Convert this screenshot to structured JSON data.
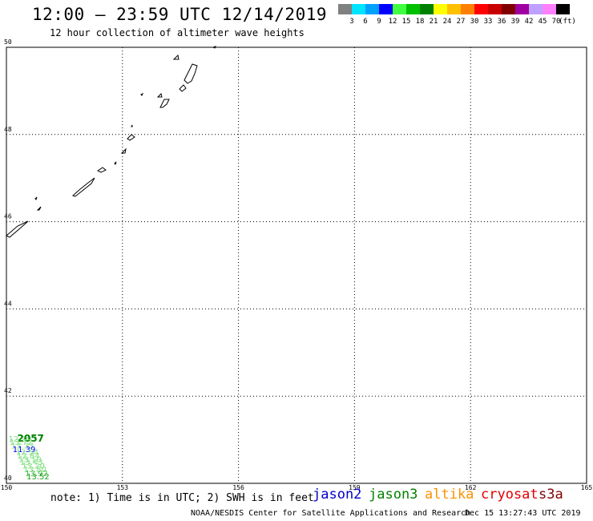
{
  "header": {
    "title": "12:00 – 23:59 UTC 12/14/2019",
    "subtitle": "12 hour collection of altimeter wave heights"
  },
  "color_scale": {
    "swatches": [
      "#808080",
      "#00e5ff",
      "#00a0ff",
      "#0000ff",
      "#40ff40",
      "#00c000",
      "#008000",
      "#ffff00",
      "#ffc000",
      "#ff8000",
      "#ff0000",
      "#c80000",
      "#800000",
      "#a000a0",
      "#c0a0ff",
      "#ff80ff",
      "#000000"
    ],
    "labels": [
      "3",
      "6",
      "9",
      "12",
      "15",
      "18",
      "21",
      "24",
      "27",
      "30",
      "33",
      "36",
      "39",
      "42",
      "45",
      "70"
    ],
    "unit": "(ft)"
  },
  "map": {
    "lon_ticks": [
      "150",
      "153",
      "156",
      "159",
      "162",
      "165"
    ],
    "lat_ticks": [
      "40",
      "42",
      "44",
      "46",
      "48",
      "50"
    ],
    "lon_range": [
      150,
      165
    ],
    "lat_range": [
      40,
      50
    ]
  },
  "swh_labels": [
    {
      "text": "12.30",
      "lon": 150.05,
      "lat": 40.96,
      "color": "#80e080"
    },
    {
      "text": "2057",
      "lon": 150.28,
      "lat": 40.96,
      "color": "#008000",
      "bold": true
    },
    {
      "text": "13.72",
      "lon": 150.08,
      "lat": 40.88,
      "color": "#80e080"
    },
    {
      "text": "13.33",
      "lon": 150.12,
      "lat": 40.8,
      "color": "#80e080"
    },
    {
      "text": "11.39",
      "lon": 150.16,
      "lat": 40.72,
      "color": "#0000ff"
    },
    {
      "text": "12.54",
      "lon": 150.24,
      "lat": 40.65,
      "color": "#80e080"
    },
    {
      "text": "12.84",
      "lon": 150.27,
      "lat": 40.57,
      "color": "#80e080"
    },
    {
      "text": "13.10",
      "lon": 150.31,
      "lat": 40.49,
      "color": "#80e080"
    },
    {
      "text": "13.43",
      "lon": 150.35,
      "lat": 40.42,
      "color": "#80e080"
    },
    {
      "text": "13.20",
      "lon": 150.4,
      "lat": 40.34,
      "color": "#80e080"
    },
    {
      "text": "13.80",
      "lon": 150.44,
      "lat": 40.26,
      "color": "#80e080"
    },
    {
      "text": "13.92",
      "lon": 150.48,
      "lat": 40.17,
      "color": "#40c040"
    },
    {
      "text": "13.52",
      "lon": 150.52,
      "lat": 40.09,
      "color": "#20a020"
    }
  ],
  "legend": {
    "note": "note: 1) Time is in UTC; 2) SWH is in feet",
    "satellites": [
      {
        "name": "jason2",
        "color": "#0000d0"
      },
      {
        "name": "jason3",
        "color": "#008000"
      },
      {
        "name": "altika",
        "color": "#ff9000"
      },
      {
        "name": "cryosat",
        "color": "#e00000"
      },
      {
        "name": "s3a",
        "color": "#800000"
      }
    ]
  },
  "footer": {
    "credit": "NOAA/NESDIS Center for Satellite Applications and Research",
    "timestamp": "Dec 15 13:27:43 UTC 2019"
  }
}
